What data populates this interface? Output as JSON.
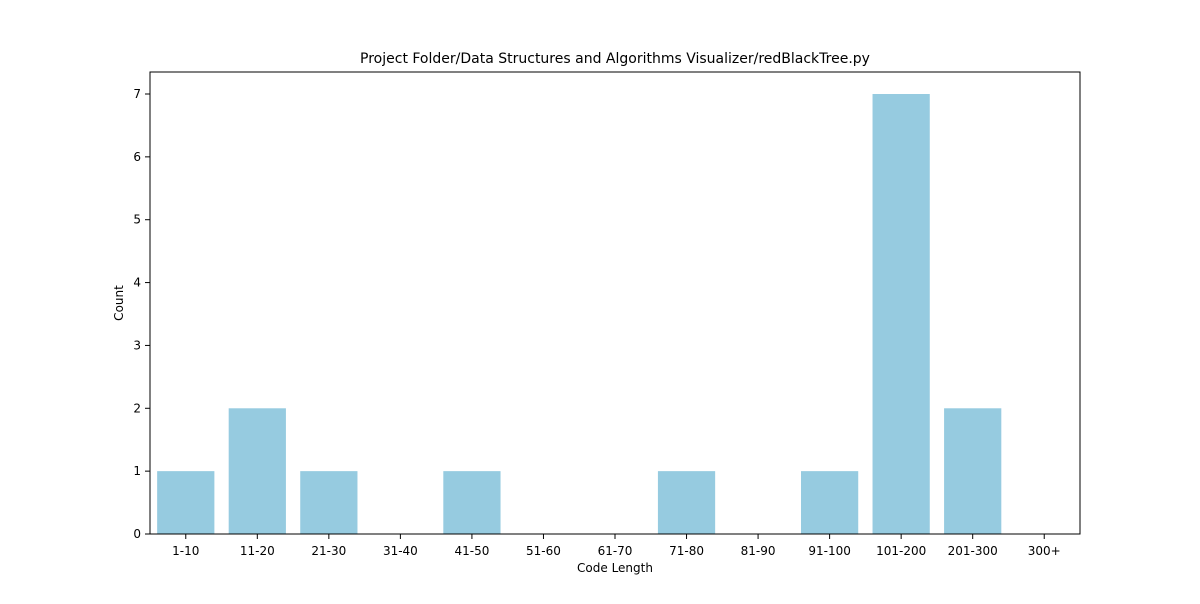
{
  "chart_data": {
    "type": "bar",
    "title": "Project Folder/Data Structures and Algorithms Visualizer/redBlackTree.py",
    "xlabel": "Code Length",
    "ylabel": "Count",
    "categories": [
      "1-10",
      "11-20",
      "21-30",
      "31-40",
      "41-50",
      "51-60",
      "61-70",
      "71-80",
      "81-90",
      "91-100",
      "101-200",
      "201-300",
      "300+"
    ],
    "values": [
      1,
      2,
      1,
      0,
      1,
      0,
      0,
      1,
      0,
      1,
      7,
      2,
      0
    ],
    "ylim": [
      0,
      7.35
    ],
    "yticks": [
      0,
      1,
      2,
      3,
      4,
      5,
      6,
      7
    ],
    "bar_color": "#96cbe0",
    "grid": false,
    "legend": "none"
  }
}
